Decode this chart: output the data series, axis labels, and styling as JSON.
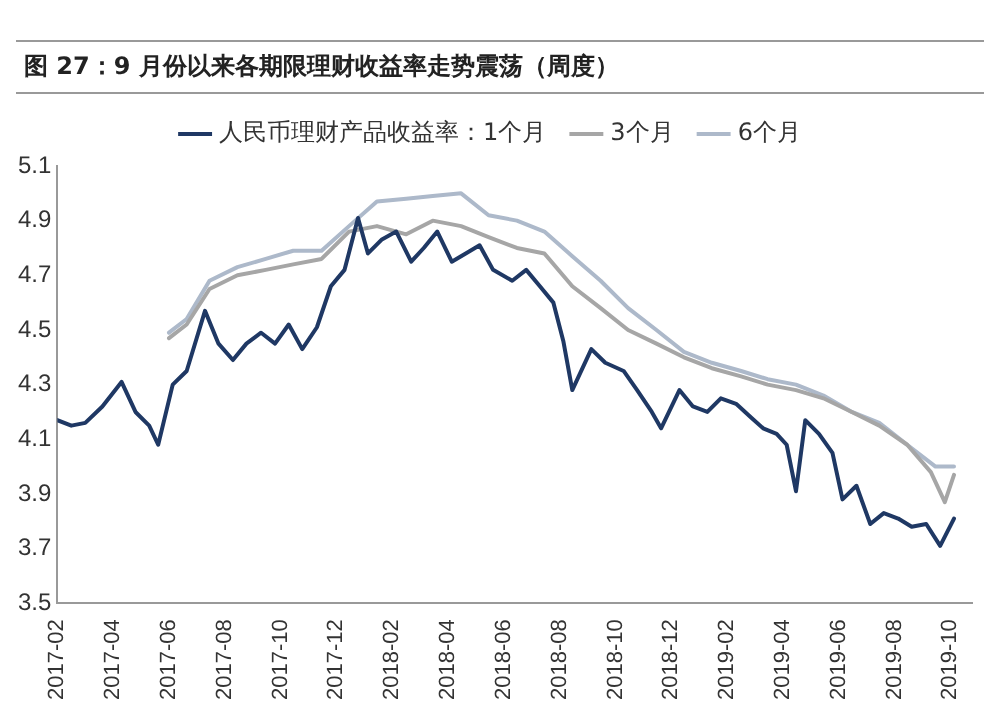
{
  "chart_data": {
    "type": "line",
    "title": "图 27：9 月份以来各期限理财收益率走势震荡（周度）",
    "xlim": [
      "2017-02-01",
      "2019-10-25"
    ],
    "xticks": [
      "2017-02",
      "2017-04",
      "2017-06",
      "2017-08",
      "2017-10",
      "2017-12",
      "2018-02",
      "2018-04",
      "2018-06",
      "2018-08",
      "2018-10",
      "2018-12",
      "2019-02",
      "2019-04",
      "2019-06",
      "2019-08",
      "2019-10"
    ],
    "ylim": [
      3.5,
      5.1
    ],
    "yticks": [
      3.5,
      3.7,
      3.9,
      4.1,
      4.3,
      4.5,
      4.7,
      4.9,
      5.1
    ],
    "grid": false,
    "legend": "top",
    "marker": "none",
    "line_style": "solid",
    "series": [
      {
        "name": "人民币理财产品收益率：1个月",
        "color": "#1f3864",
        "x": [
          "2017-02-01",
          "2017-02-15",
          "2017-03-01",
          "2017-03-20",
          "2017-04-10",
          "2017-04-25",
          "2017-05-10",
          "2017-05-20",
          "2017-06-05",
          "2017-06-20",
          "2017-07-10",
          "2017-07-25",
          "2017-08-10",
          "2017-08-25",
          "2017-09-10",
          "2017-09-25",
          "2017-10-10",
          "2017-10-25",
          "2017-11-10",
          "2017-11-25",
          "2017-12-10",
          "2017-12-25",
          "2018-01-05",
          "2018-01-20",
          "2018-02-05",
          "2018-02-20",
          "2018-03-05",
          "2018-03-20",
          "2018-04-05",
          "2018-04-20",
          "2018-05-05",
          "2018-05-20",
          "2018-06-10",
          "2018-06-25",
          "2018-07-10",
          "2018-07-25",
          "2018-08-05",
          "2018-08-15",
          "2018-09-05",
          "2018-09-20",
          "2018-10-10",
          "2018-10-25",
          "2018-11-10",
          "2018-11-20",
          "2018-12-10",
          "2018-12-25",
          "2019-01-10",
          "2019-01-25",
          "2019-02-10",
          "2019-02-25",
          "2019-03-10",
          "2019-03-25",
          "2019-04-05",
          "2019-04-15",
          "2019-04-25",
          "2019-05-10",
          "2019-05-25",
          "2019-06-05",
          "2019-06-20",
          "2019-07-05",
          "2019-07-20",
          "2019-08-05",
          "2019-08-20",
          "2019-09-05",
          "2019-09-20",
          "2019-10-05"
        ],
        "values": [
          4.17,
          4.15,
          4.16,
          4.22,
          4.31,
          4.2,
          4.15,
          4.08,
          4.3,
          4.35,
          4.57,
          4.45,
          4.39,
          4.45,
          4.49,
          4.45,
          4.52,
          4.43,
          4.51,
          4.66,
          4.72,
          4.91,
          4.78,
          4.83,
          4.86,
          4.75,
          4.8,
          4.86,
          4.75,
          4.78,
          4.81,
          4.72,
          4.68,
          4.72,
          4.66,
          4.6,
          4.46,
          4.28,
          4.43,
          4.38,
          4.35,
          4.28,
          4.2,
          4.14,
          4.28,
          4.22,
          4.2,
          4.25,
          4.23,
          4.18,
          4.14,
          4.12,
          4.08,
          3.91,
          4.17,
          4.12,
          4.05,
          3.88,
          3.93,
          3.79,
          3.83,
          3.81,
          3.78,
          3.79,
          3.71,
          3.81
        ]
      },
      {
        "name": "3个月",
        "color": "#a6a6a6",
        "x": [
          "2017-06-01",
          "2017-06-20",
          "2017-07-15",
          "2017-08-15",
          "2017-09-15",
          "2017-10-15",
          "2017-11-15",
          "2017-12-15",
          "2018-01-15",
          "2018-02-15",
          "2018-03-15",
          "2018-04-15",
          "2018-05-15",
          "2018-06-15",
          "2018-07-15",
          "2018-08-15",
          "2018-09-15",
          "2018-10-15",
          "2018-11-15",
          "2018-12-15",
          "2019-01-15",
          "2019-02-15",
          "2019-03-15",
          "2019-04-15",
          "2019-05-15",
          "2019-06-15",
          "2019-07-15",
          "2019-08-15",
          "2019-09-10",
          "2019-09-25",
          "2019-10-05"
        ],
        "values": [
          4.47,
          4.52,
          4.65,
          4.7,
          4.72,
          4.74,
          4.76,
          4.86,
          4.88,
          4.85,
          4.9,
          4.88,
          4.84,
          4.8,
          4.78,
          4.66,
          4.58,
          4.5,
          4.45,
          4.4,
          4.36,
          4.33,
          4.3,
          4.28,
          4.25,
          4.2,
          4.15,
          4.08,
          3.98,
          3.87,
          3.97
        ]
      },
      {
        "name": "6个月",
        "color": "#adb9ca",
        "x": [
          "2017-06-01",
          "2017-06-20",
          "2017-07-15",
          "2017-08-15",
          "2017-09-15",
          "2017-10-15",
          "2017-11-15",
          "2017-12-15",
          "2018-01-15",
          "2018-02-15",
          "2018-03-15",
          "2018-04-15",
          "2018-05-15",
          "2018-06-15",
          "2018-07-15",
          "2018-08-15",
          "2018-09-15",
          "2018-10-15",
          "2018-11-15",
          "2018-12-15",
          "2019-01-15",
          "2019-02-15",
          "2019-03-15",
          "2019-04-15",
          "2019-05-15",
          "2019-06-15",
          "2019-07-15",
          "2019-08-15",
          "2019-09-15",
          "2019-10-05"
        ],
        "values": [
          4.49,
          4.54,
          4.68,
          4.73,
          4.76,
          4.79,
          4.79,
          4.88,
          4.97,
          4.98,
          4.99,
          5.0,
          4.92,
          4.9,
          4.86,
          4.77,
          4.68,
          4.58,
          4.5,
          4.42,
          4.38,
          4.35,
          4.32,
          4.3,
          4.26,
          4.2,
          4.16,
          4.08,
          4.0,
          4.0
        ]
      }
    ]
  }
}
